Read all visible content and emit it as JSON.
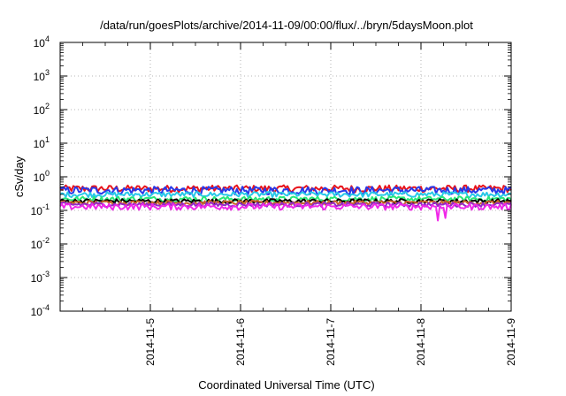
{
  "chart_data": {
    "type": "line",
    "title": "/data/run/goesPlots/archive/2014-11-09/00:00/flux/../bryn/5daysMoon.plot",
    "xlabel": "Coordinated Universal Time (UTC)",
    "ylabel": "cSv/day",
    "yscale": "log",
    "ylim": [
      0.0001,
      10000
    ],
    "y_ticks": [
      {
        "value": 0.0001,
        "base": "10",
        "exp": "-4"
      },
      {
        "value": 0.001,
        "base": "10",
        "exp": "-3"
      },
      {
        "value": 0.01,
        "base": "10",
        "exp": "-2"
      },
      {
        "value": 0.1,
        "base": "10",
        "exp": "-1"
      },
      {
        "value": 1,
        "base": "10",
        "exp": "0"
      },
      {
        "value": 10,
        "base": "10",
        "exp": "1"
      },
      {
        "value": 100,
        "base": "10",
        "exp": "2"
      },
      {
        "value": 1000,
        "base": "10",
        "exp": "3"
      },
      {
        "value": 10000,
        "base": "10",
        "exp": "4"
      }
    ],
    "xlim": [
      "2014-11-04T00:00",
      "2014-11-09T00:00"
    ],
    "x_ticks": [
      {
        "value": "2014-11-05T00:00",
        "label": "2014-11-5"
      },
      {
        "value": "2014-11-06T00:00",
        "label": "2014-11-6"
      },
      {
        "value": "2014-11-07T00:00",
        "label": "2014-11-7"
      },
      {
        "value": "2014-11-08T00:00",
        "label": "2014-11-8"
      },
      {
        "value": "2014-11-09T00:00",
        "label": "2014-11-9"
      }
    ],
    "grid": true,
    "legend": "none",
    "series": [
      {
        "color": "#e8141c",
        "level": 0.45,
        "noise": 0.08
      },
      {
        "color": "#2838e8",
        "level": 0.4,
        "noise": 0.09
      },
      {
        "color": "#28c8e8",
        "level": 0.3,
        "noise": 0.06
      },
      {
        "color": "#28e878",
        "level": 0.22,
        "noise": 0.06
      },
      {
        "color": "#000000",
        "level": 0.19,
        "noise": 0.05
      },
      {
        "color": "#c86428",
        "level": 0.17,
        "noise": 0.05
      },
      {
        "color": "#9428c8",
        "level": 0.15,
        "noise": 0.05
      },
      {
        "color": "#f028e8",
        "level": 0.13,
        "noise": 0.07
      }
    ]
  }
}
